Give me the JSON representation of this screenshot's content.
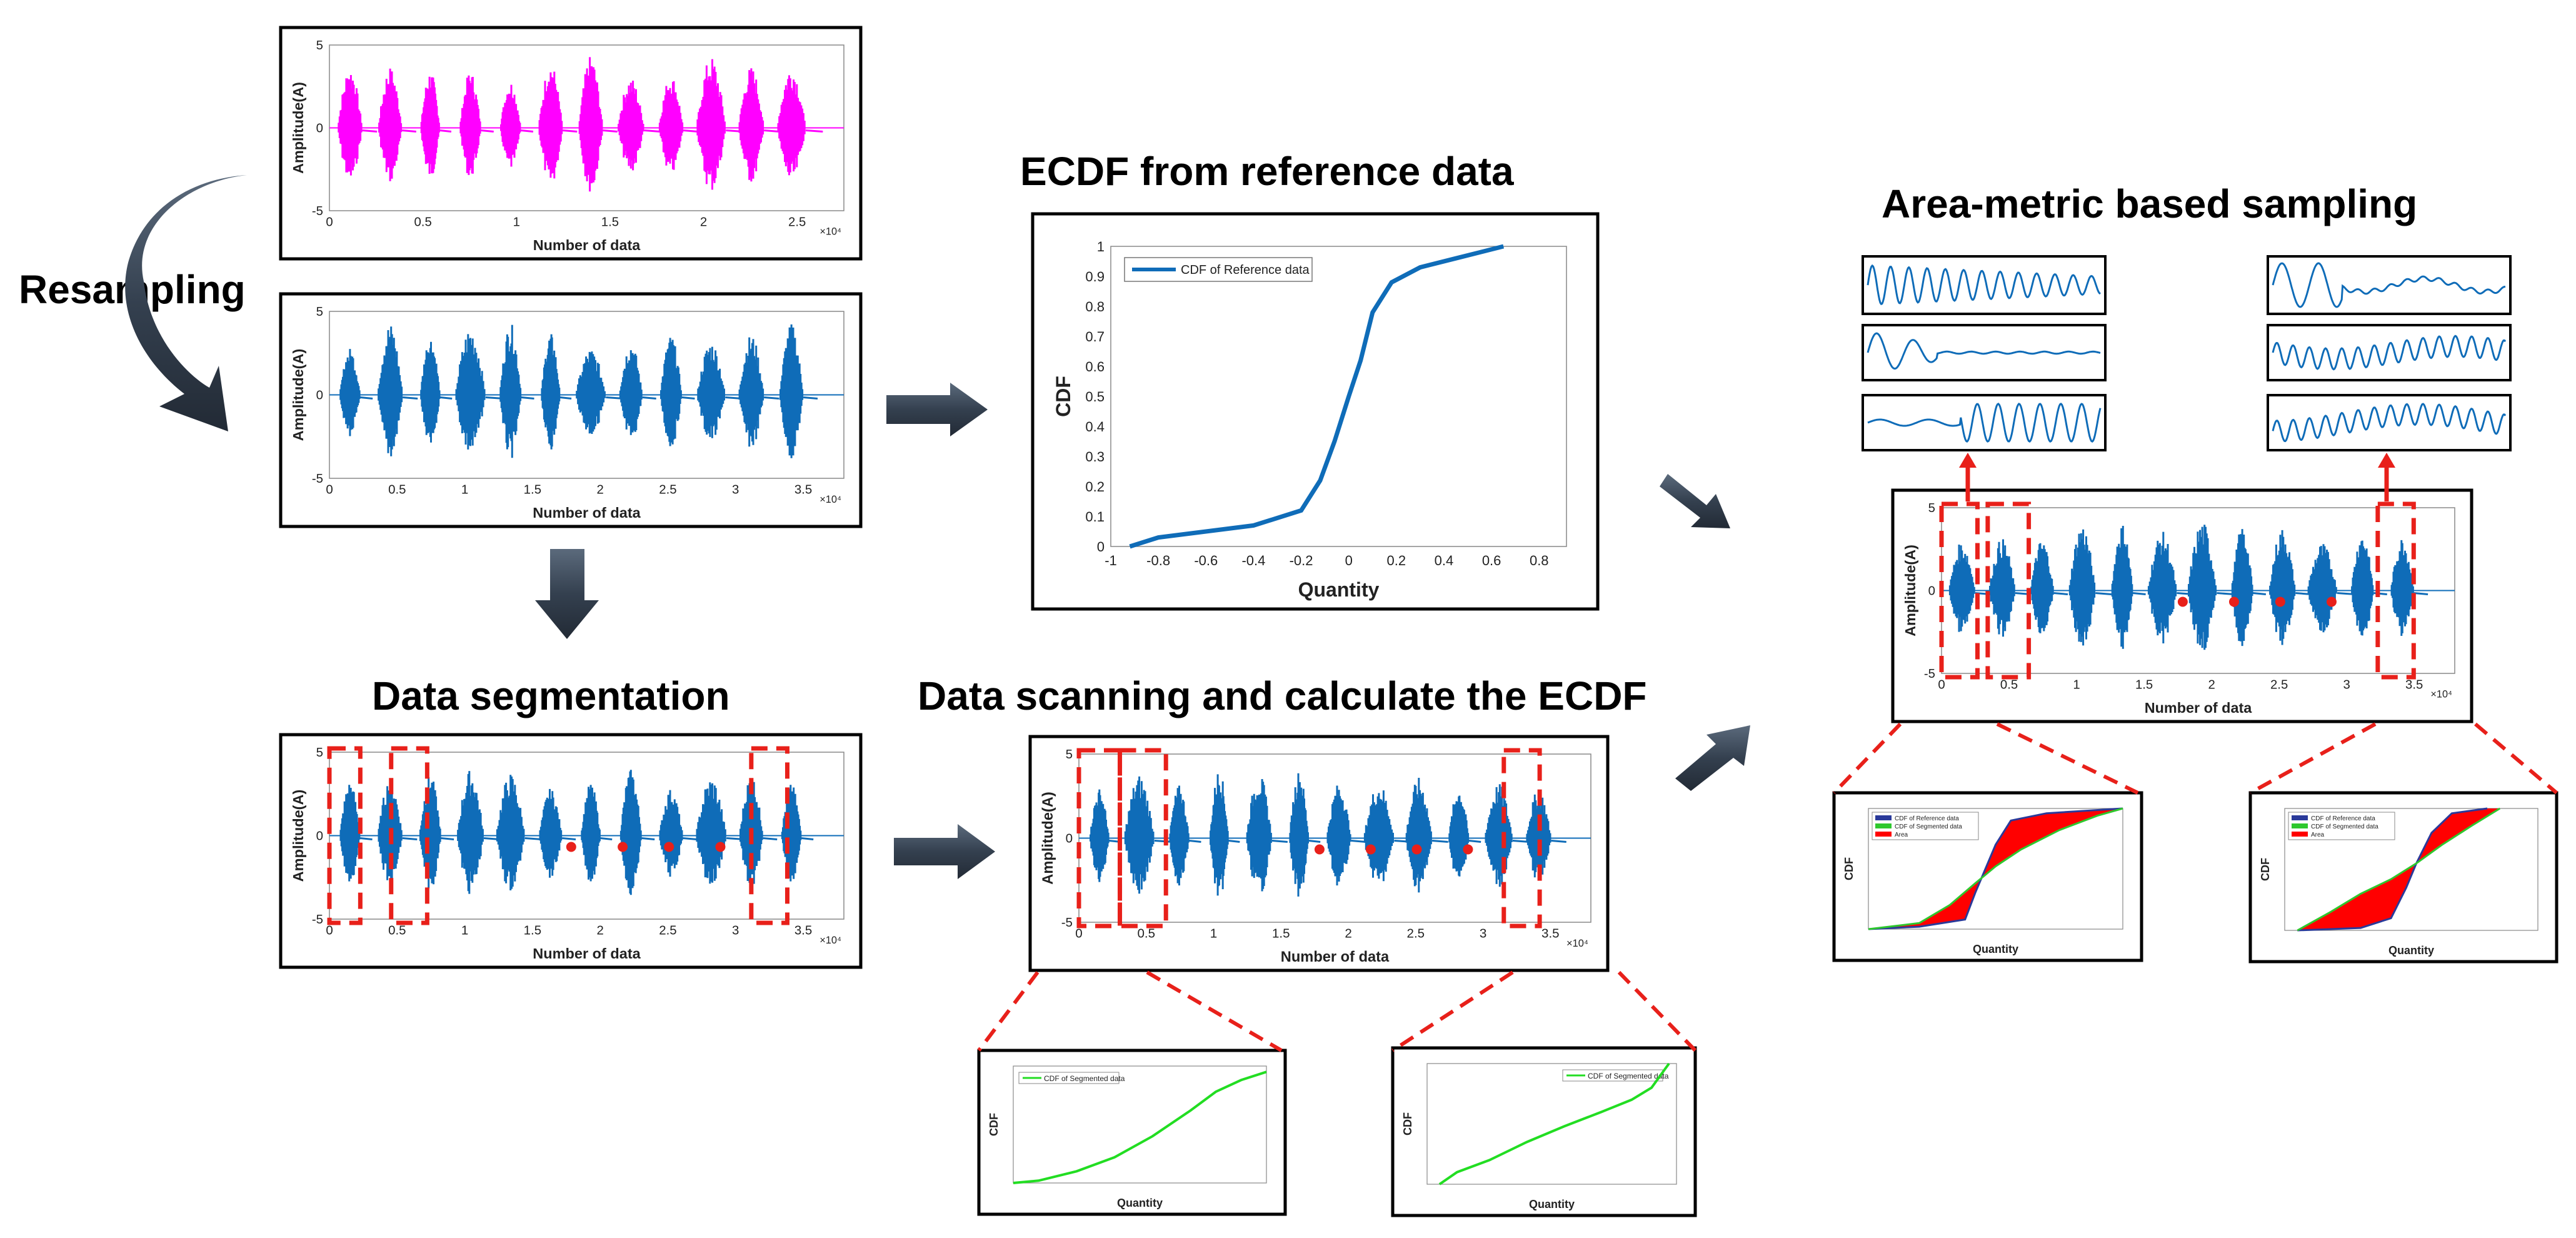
{
  "titles": {
    "resampling": "Resampling",
    "ecdf_reference": "ECDF from reference data",
    "area_metric": "Area-metric based sampling",
    "data_segmentation": "Data segmentation",
    "data_scanning": "Data scanning and calculate the ECDF"
  },
  "signal_plot": {
    "ylabel": "Amplitude(A)",
    "xlabel": "Number of data",
    "yticks": [
      "5",
      "0",
      "-5"
    ],
    "xticks_original": [
      "0",
      "0.5",
      "1",
      "1.5",
      "2",
      "2.5"
    ],
    "xticks_resampled": [
      "0",
      "0.5",
      "1",
      "1.5",
      "2",
      "2.5",
      "3",
      "3.5"
    ],
    "x_exponent": "×10⁴",
    "original_color": "#ff00ff",
    "resampled_color": "#0f6cb8"
  },
  "ecdf_reference": {
    "ylabel": "CDF",
    "xlabel": "Quantity",
    "legend": "CDF of Reference data",
    "xticks": [
      "-1",
      "-0.8",
      "-0.6",
      "-0.4",
      "-0.2",
      "0",
      "0.2",
      "0.4",
      "0.6",
      "0.8"
    ],
    "yticks": [
      "0",
      "0.1",
      "0.2",
      "0.3",
      "0.4",
      "0.5",
      "0.6",
      "0.7",
      "0.8",
      "0.9",
      "1"
    ],
    "line_color": "#0f6cb8"
  },
  "segment_ecdf": {
    "ylabel": "CDF",
    "xlabel": "Quantity",
    "legend": "CDF of Segmented data",
    "line_color": "#22dd22"
  },
  "area_metric_plot": {
    "ylabel": "CDF",
    "xlabel": "Quantity",
    "legend": [
      "CDF of Reference data",
      "CDF of Segmented data",
      "Area"
    ],
    "area_color": "#ff0000"
  },
  "colors": {
    "arrow": "#34404f",
    "red_dash": "#e8201a",
    "frame": "#000000"
  }
}
